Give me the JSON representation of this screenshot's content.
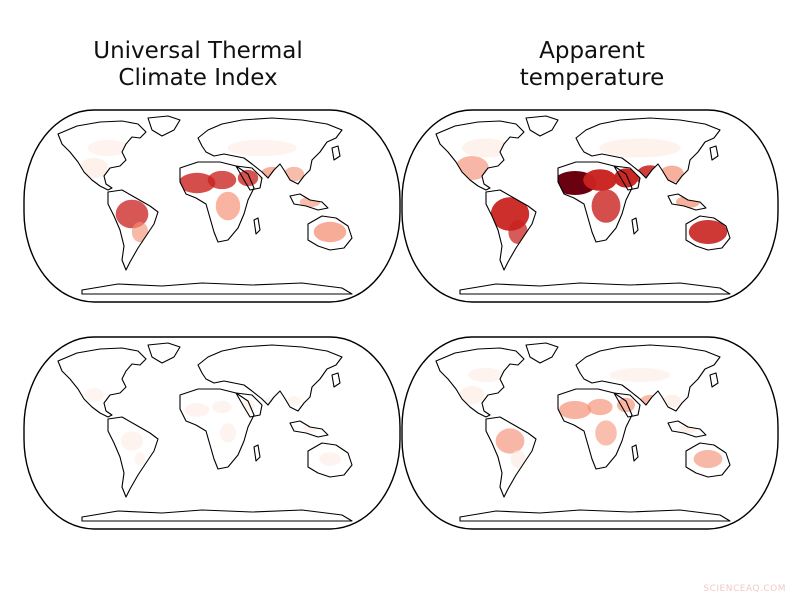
{
  "titles": {
    "left": "Universal Thermal\nClimate Index",
    "right": "Apparent\ntemperature"
  },
  "watermark": "SCIENCEAQ.COM",
  "colors": {
    "background": "#ffffff",
    "coast": "#000000",
    "heat_low": "#fde5da",
    "heat_mid": "#f48f73",
    "heat_high": "#c9221f",
    "heat_max": "#6b0010"
  },
  "maps": [
    {
      "id": "utci-top",
      "column": "Universal Thermal Climate Index",
      "row": 1,
      "intensity": 0.7
    },
    {
      "id": "apparent-top",
      "column": "Apparent temperature",
      "row": 1,
      "intensity": 1.0
    },
    {
      "id": "utci-bottom",
      "column": "Universal Thermal Climate Index",
      "row": 2,
      "intensity": 0.15
    },
    {
      "id": "apparent-bottom",
      "column": "Apparent temperature",
      "row": 2,
      "intensity": 0.5
    }
  ]
}
